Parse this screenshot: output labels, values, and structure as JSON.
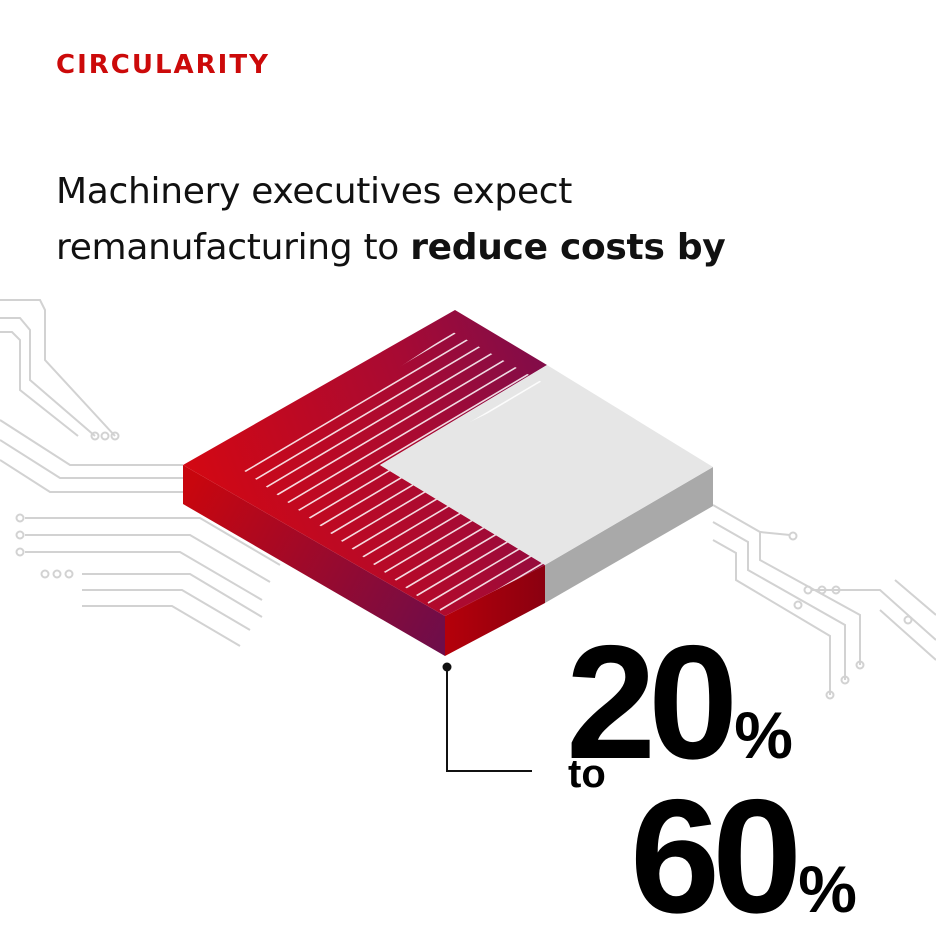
{
  "eyebrow": "CIRCULARITY",
  "headline": {
    "line1": "Machinery executives expect",
    "line2_regular": "remanufacturing to ",
    "line2_bold": "reduce costs by"
  },
  "stat": {
    "low_number": "20",
    "low_unit": "%",
    "connector": "to",
    "high_number": "60",
    "high_unit": "%"
  },
  "colors": {
    "accent_red": "#cc0a0a",
    "plum": "#7a0d4d",
    "panel_grey": "#e4e4e4",
    "circuit_grey": "#d2d2d2"
  },
  "icons": [
    "circuit-traces-graphic",
    "isometric-chip-graphic",
    "leader-line"
  ]
}
